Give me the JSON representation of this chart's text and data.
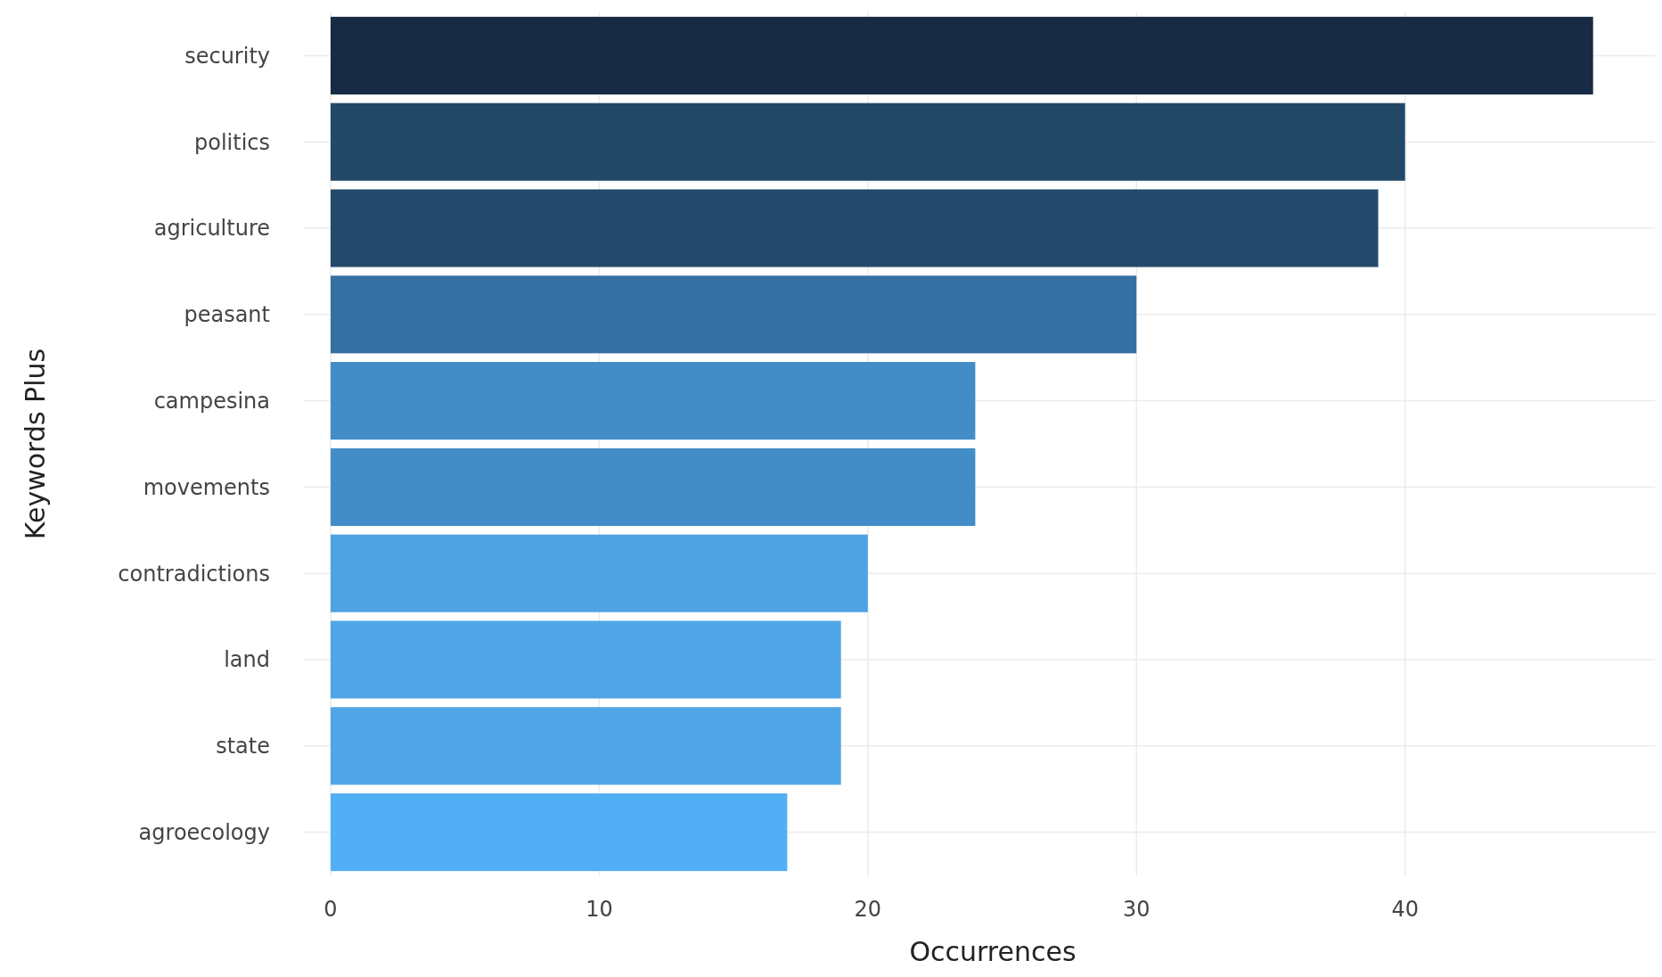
{
  "chart_data": {
    "type": "bar",
    "orientation": "horizontal",
    "xlabel": "Occurrences",
    "ylabel": "Keywords Plus",
    "categories": [
      "security",
      "politics",
      "agriculture",
      "peasant",
      "campesina",
      "movements",
      "contradictions",
      "land",
      "state",
      "agroecology"
    ],
    "values": [
      47,
      40,
      39,
      30,
      24,
      24,
      20,
      19,
      19,
      17
    ],
    "colors": [
      "#182b45",
      "#224868",
      "#234a6b",
      "#3670a3",
      "#428dc8",
      "#428dc8",
      "#4fa3e3",
      "#50a5e7",
      "#50a5e7",
      "#53aff5"
    ],
    "xlim": [
      0,
      49.3
    ],
    "xticks": [
      0,
      10,
      20,
      30,
      40
    ],
    "grid": true
  }
}
